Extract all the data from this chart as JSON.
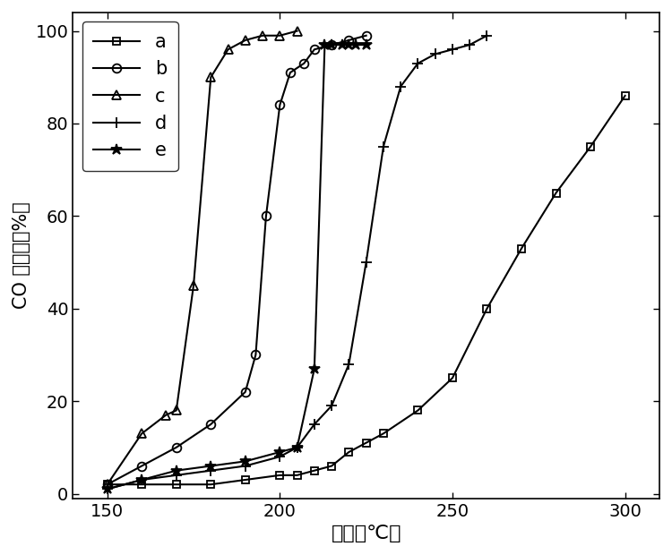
{
  "series": {
    "a": {
      "x": [
        150,
        160,
        170,
        180,
        190,
        200,
        205,
        210,
        215,
        220,
        225,
        230,
        240,
        250,
        260,
        270,
        280,
        290,
        300
      ],
      "y": [
        2,
        2,
        2,
        2,
        3,
        4,
        4,
        5,
        6,
        9,
        11,
        13,
        18,
        25,
        40,
        53,
        65,
        75,
        86
      ],
      "marker": "s",
      "label": "a",
      "markersize": 6
    },
    "b": {
      "x": [
        150,
        160,
        170,
        180,
        190,
        193,
        196,
        200,
        203,
        207,
        210,
        215,
        220,
        225
      ],
      "y": [
        2,
        6,
        10,
        15,
        22,
        30,
        60,
        84,
        91,
        93,
        96,
        97,
        98,
        99
      ],
      "marker": "o",
      "label": "b",
      "markersize": 7
    },
    "c": {
      "x": [
        150,
        160,
        167,
        170,
        175,
        180,
        185,
        190,
        195,
        200,
        205
      ],
      "y": [
        2,
        13,
        17,
        18,
        45,
        90,
        96,
        98,
        99,
        99,
        100
      ],
      "marker": "^",
      "label": "c",
      "markersize": 7
    },
    "d": {
      "x": [
        150,
        160,
        170,
        180,
        190,
        200,
        205,
        210,
        215,
        220,
        225,
        230,
        235,
        240,
        245,
        250,
        255,
        260
      ],
      "y": [
        1,
        3,
        4,
        5,
        6,
        8,
        10,
        15,
        19,
        28,
        50,
        75,
        88,
        93,
        95,
        96,
        97,
        99
      ],
      "marker": "+",
      "label": "d",
      "markersize": 8
    },
    "e": {
      "x": [
        150,
        160,
        170,
        180,
        190,
        200,
        205,
        210,
        213,
        215,
        218,
        220,
        222,
        225
      ],
      "y": [
        1,
        3,
        5,
        6,
        7,
        9,
        10,
        27,
        97,
        97,
        97,
        97,
        97,
        97
      ],
      "marker": "*",
      "label": "e",
      "markersize": 9
    }
  },
  "xlabel": "温度（℃）",
  "ylabel": "CO 转化率（%）",
  "xlim": [
    140,
    310
  ],
  "ylim": [
    -1,
    104
  ],
  "xticks": [
    150,
    200,
    250,
    300
  ],
  "yticks": [
    0,
    20,
    40,
    60,
    80,
    100
  ],
  "line_color": "#000000",
  "linewidth": 1.5,
  "legend_fontsize": 15,
  "axis_label_fontsize": 16,
  "tick_fontsize": 14
}
